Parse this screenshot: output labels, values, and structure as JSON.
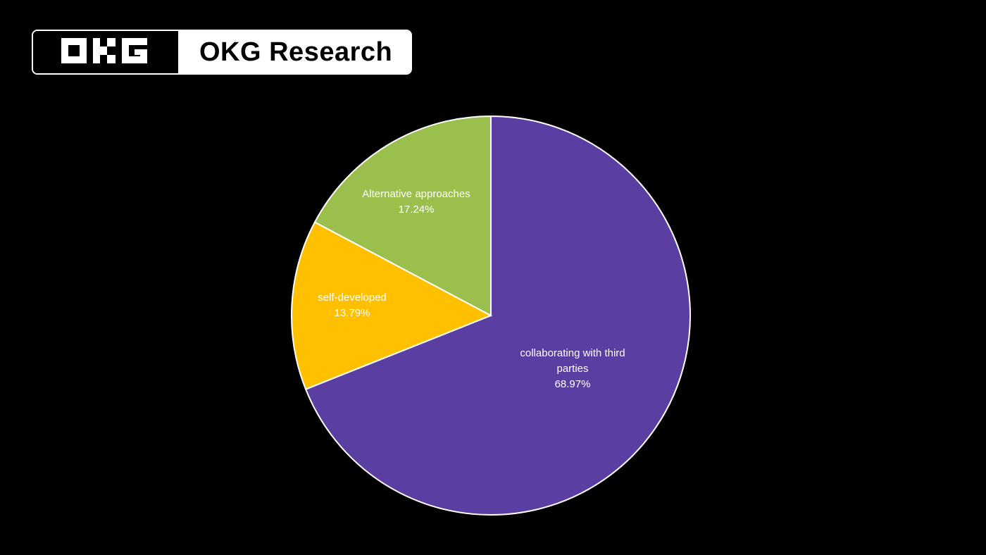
{
  "brand": {
    "logo_icon": "okg-logo-icon",
    "name": "OKG Research"
  },
  "colors": {
    "background": "#000000",
    "purple": "#5a3ea1",
    "yellow": "#ffc000",
    "green": "#9bbf4d"
  },
  "chart_data": {
    "type": "pie",
    "title": "",
    "slices": [
      {
        "label_lines": [
          "collaborating with third",
          "parties"
        ],
        "value": 68.97,
        "value_text": "68.97%",
        "color": "#5a3ea1"
      },
      {
        "label_lines": [
          "self-developed"
        ],
        "value": 13.79,
        "value_text": "13.79%",
        "color": "#ffc000"
      },
      {
        "label_lines": [
          "Alternative approaches"
        ],
        "value": 17.24,
        "value_text": "17.24%",
        "color": "#9bbf4d"
      }
    ],
    "start_angle": "12 o'clock",
    "direction": "clockwise",
    "legend": "none"
  }
}
